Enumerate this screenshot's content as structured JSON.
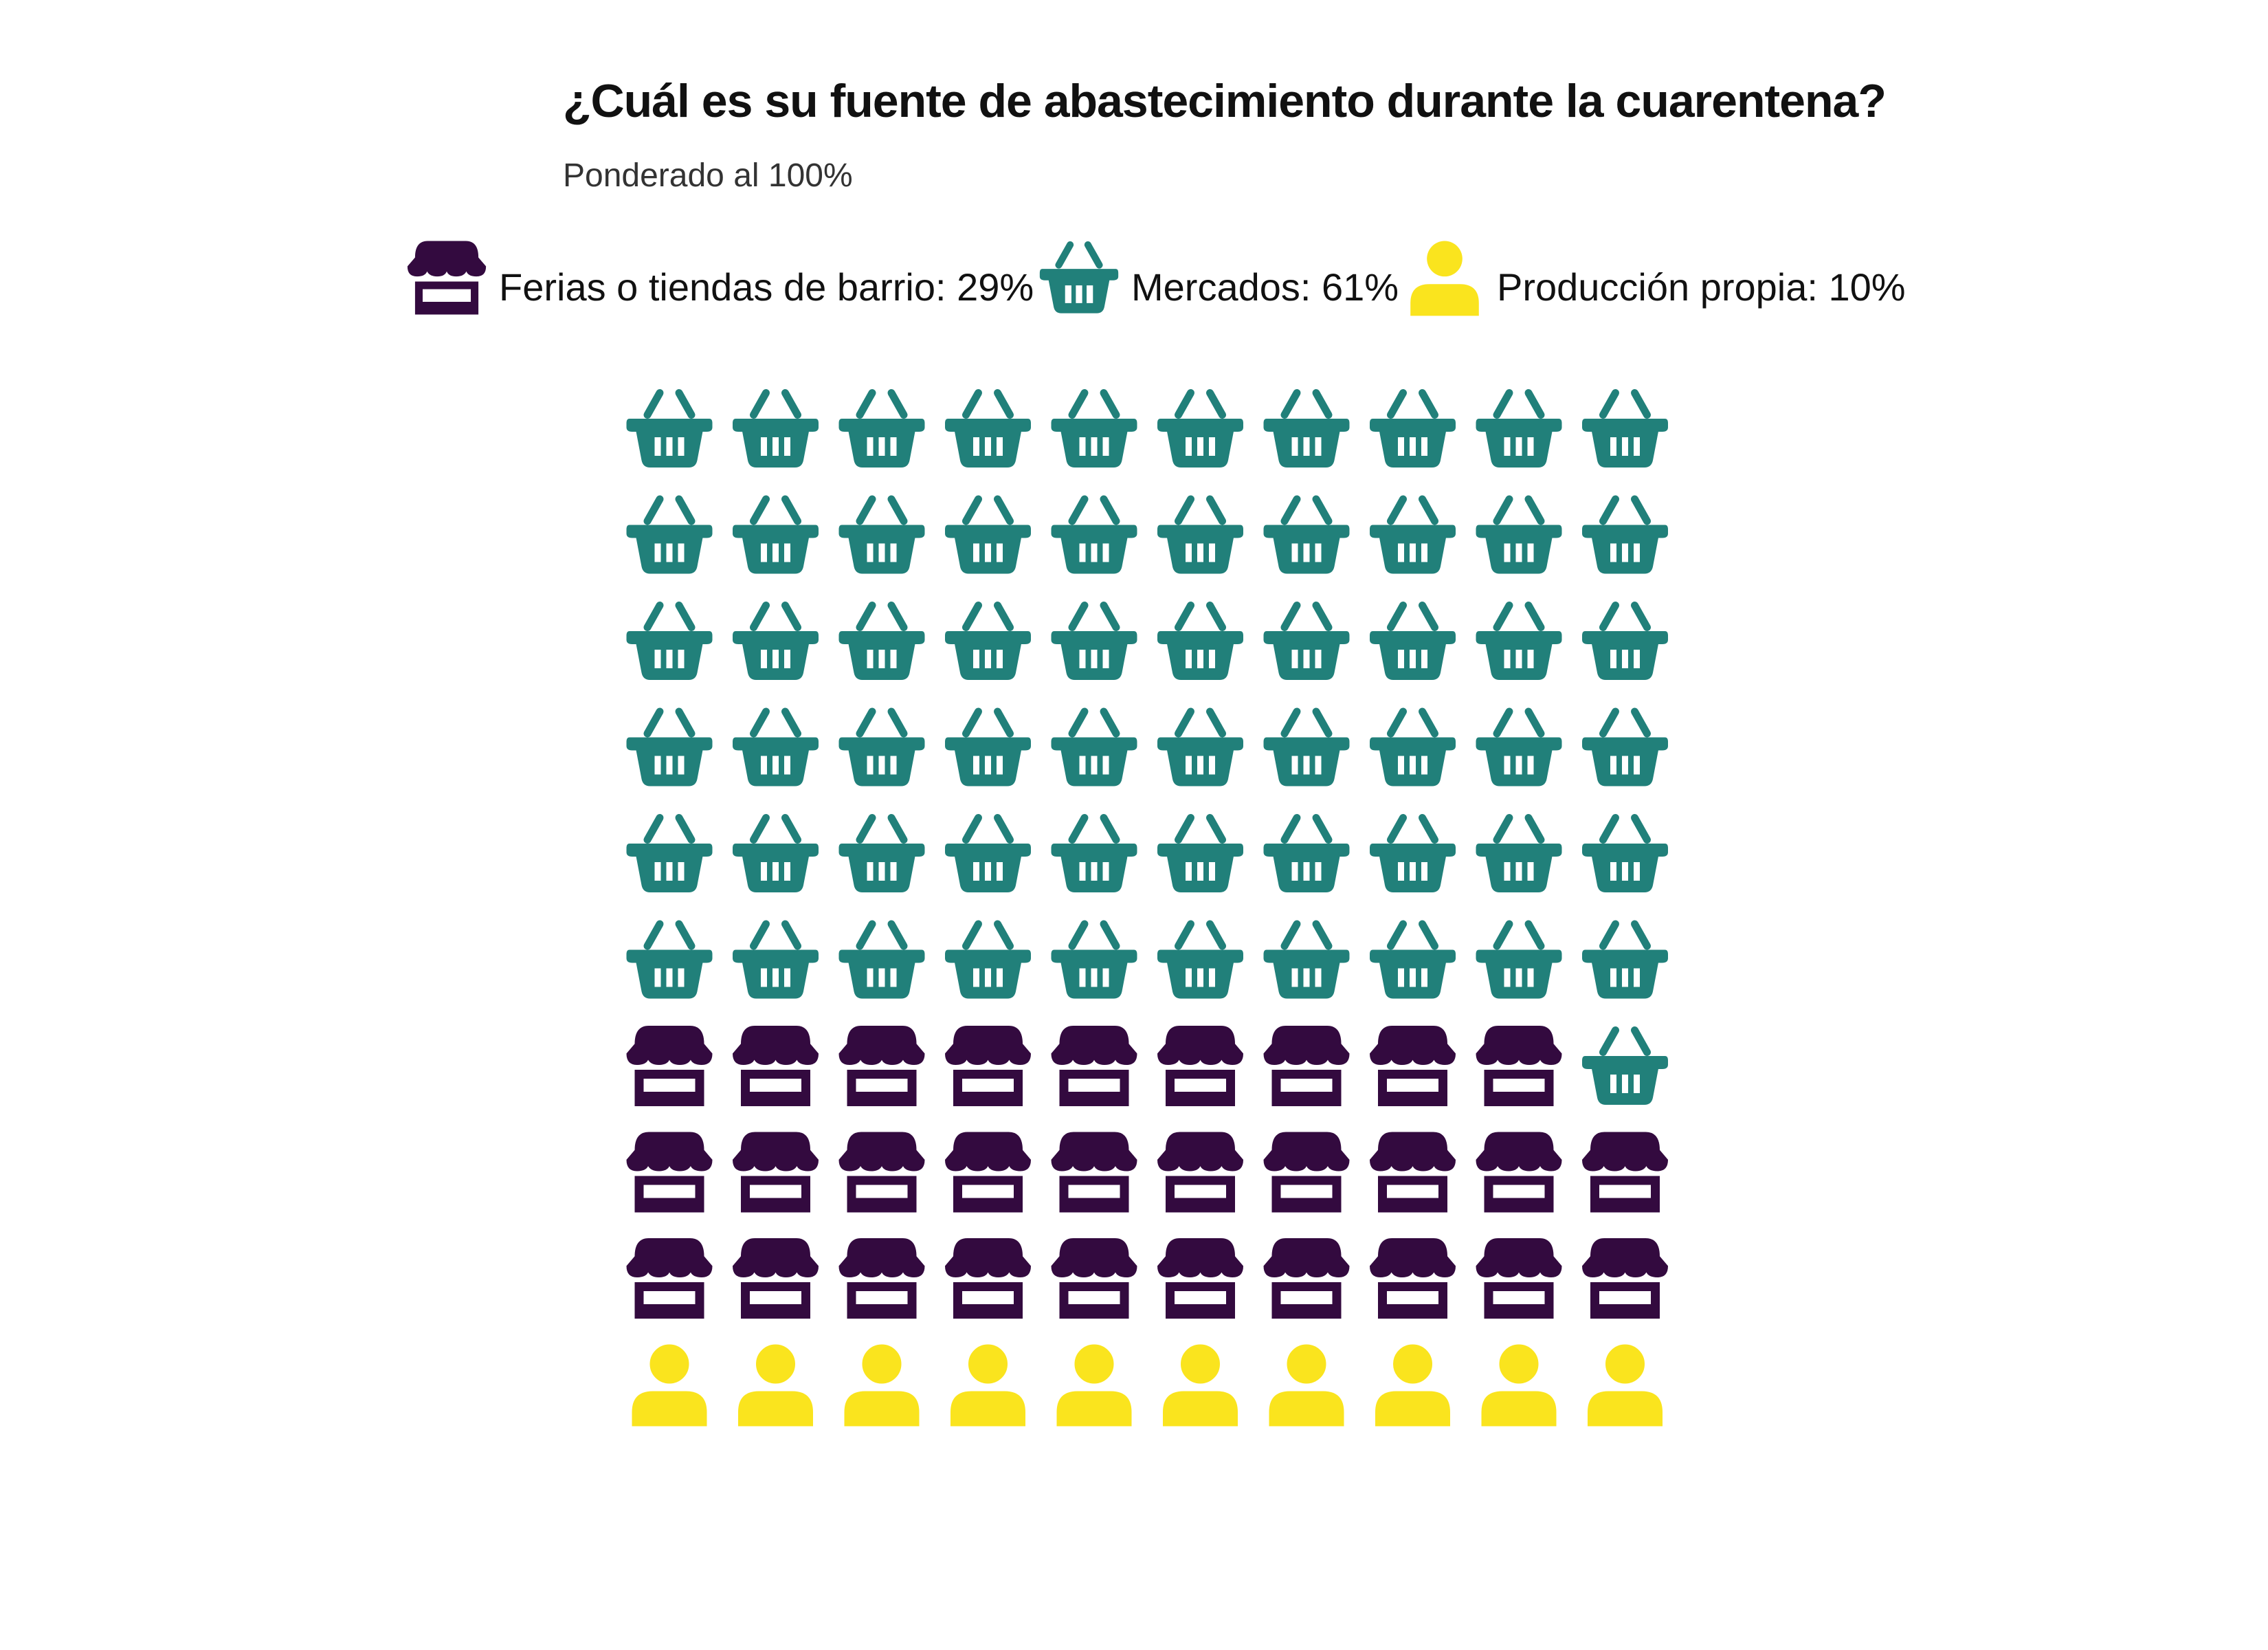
{
  "chart_data": {
    "type": "waffle",
    "title": "¿Cuál es su fuente de abastecimiento durante la cuarentena?",
    "subtitle": "Ponderado al 100%",
    "legend_position": "top",
    "grid": {
      "rows": 10,
      "cols": 10
    },
    "series": [
      {
        "name": "Mercados",
        "label": "Mercados: 61%",
        "value": 61,
        "icon": "basket-icon",
        "color": "#21807a"
      },
      {
        "name": "Ferias o tiendas de barrio",
        "label": "Ferias o tiendas de barrio: 29%",
        "value": 29,
        "icon": "store-icon",
        "color": "#330a3f"
      },
      {
        "name": "Producción propia",
        "label": "Producción propia: 10%",
        "value": 10,
        "icon": "person-icon",
        "color": "#fae41e"
      }
    ],
    "legend_order": [
      1,
      0,
      2
    ]
  }
}
